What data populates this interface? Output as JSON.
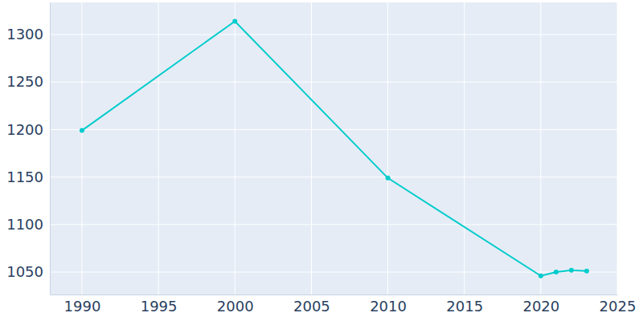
{
  "chart_data": {
    "type": "line",
    "x": [
      1990,
      2000,
      2010,
      2020,
      2021,
      2022,
      2023
    ],
    "values": [
      1199,
      1314,
      1149,
      1046,
      1050,
      1052,
      1051
    ],
    "color": "#00cccc",
    "marker": "circle",
    "xlim": [
      1987.9,
      2025
    ],
    "xticks": [
      1990,
      1995,
      2000,
      2005,
      2010,
      2015,
      2020,
      2025
    ],
    "ylim": [
      1026.4,
      1333.8
    ],
    "yticks": [
      1050,
      1100,
      1150,
      1200,
      1250,
      1300
    ],
    "grid": true
  }
}
